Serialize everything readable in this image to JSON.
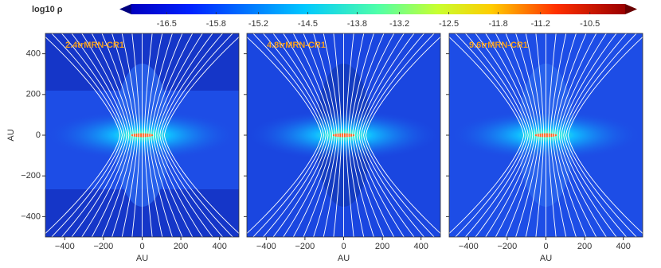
{
  "chart_data": {
    "type": "heatmap",
    "colorbar": {
      "label": "log10 ρ",
      "lim": [
        -17,
        -10
      ],
      "ticks": [
        -16.5,
        -15.8,
        -15.2,
        -14.5,
        -13.8,
        -13.2,
        -12.5,
        -11.8,
        -11.2,
        -10.5
      ]
    },
    "panels": [
      {
        "title": "2.4trMRN-CR1"
      },
      {
        "title": "4.8trMRN-CR1"
      },
      {
        "title": "9.6trMRN-CR1"
      }
    ],
    "xlabel": "AU",
    "ylabel": "AU",
    "xlim": [
      -500,
      500
    ],
    "ylim": [
      -500,
      500
    ],
    "xticks": [
      {
        "value": -400,
        "label": "−400"
      },
      {
        "value": -200,
        "label": "−200"
      },
      0,
      200,
      400
    ],
    "yticks": [
      400,
      200,
      0,
      {
        "value": -200,
        "label": "−200"
      },
      {
        "value": -400,
        "label": "−400"
      }
    ]
  }
}
